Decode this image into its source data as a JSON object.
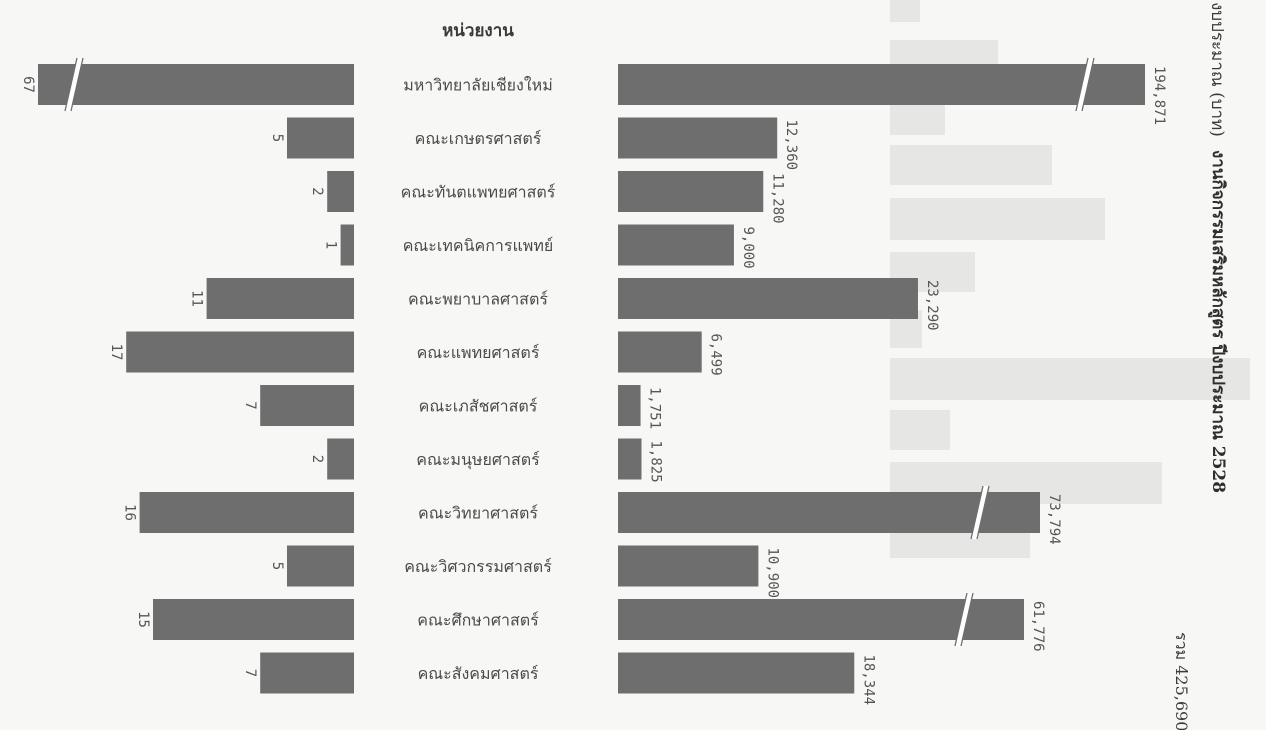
{
  "chart_data": {
    "type": "bar",
    "category_header": "หน่วยงาน",
    "categories": [
      "มหาวิทยาลัยเชียงใหม่",
      "คณะเกษตรศาสตร์",
      "คณะทันตแพทยศาสตร์",
      "คณะเทคนิคการแพทย์",
      "คณะพยาบาลศาสตร์",
      "คณะแพทยศาสตร์",
      "คณะเภสัชศาสตร์",
      "คณะมนุษยศาสตร์",
      "คณะวิทยาศาสตร์",
      "คณะวิศวกรรมศาสตร์",
      "คณะศึกษาศาสตร์",
      "คณะสังคมศาสตร์"
    ],
    "series": [
      {
        "values": [
          67,
          5,
          2,
          1,
          11,
          17,
          7,
          2,
          16,
          5,
          15,
          7
        ],
        "labels": [
          "67",
          "5",
          "2",
          "1",
          "11",
          "17",
          "7",
          "2",
          "16",
          "5",
          "15",
          "7"
        ],
        "broken": [
          true,
          false,
          false,
          false,
          false,
          false,
          false,
          false,
          false,
          false,
          false,
          false
        ]
      },
      {
        "values": [
          194871,
          12360,
          11280,
          9000,
          23290,
          6499,
          1751,
          1825,
          73794,
          10900,
          61776,
          18344
        ],
        "labels": [
          "194,871",
          "12,360",
          "11,280",
          "9,000",
          "23,290",
          "6,499",
          "1,751",
          "1,825",
          "73,794",
          "10,900",
          "61,776",
          "18,344"
        ],
        "broken": [
          true,
          false,
          false,
          false,
          false,
          false,
          false,
          false,
          true,
          false,
          true,
          false
        ]
      }
    ],
    "side_title_1": "งานกิจกรรมเสริมหลักสูตร ปีงบประมาณ 2528",
    "side_title_2": "งบประมาณ (บาท)",
    "total_label": "รวม 425,690"
  }
}
